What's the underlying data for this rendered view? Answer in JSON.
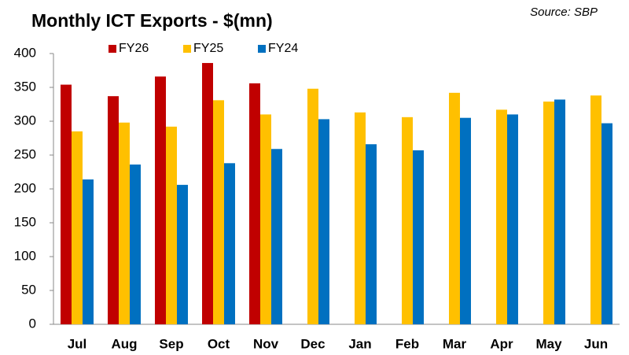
{
  "chart_data": {
    "type": "bar",
    "title": "Monthly ICT Exports - $(mn)",
    "annotation": "Source: SBP",
    "categories": [
      "Jul",
      "Aug",
      "Sep",
      "Oct",
      "Nov",
      "Dec",
      "Jan",
      "Feb",
      "Mar",
      "Apr",
      "May",
      "Jun"
    ],
    "series": [
      {
        "name": "FY26",
        "color": "#c00000",
        "values": [
          354,
          337,
          366,
          386,
          356,
          null,
          null,
          null,
          null,
          null,
          null,
          null
        ]
      },
      {
        "name": "FY25",
        "color": "#ffc000",
        "values": [
          285,
          298,
          292,
          331,
          310,
          348,
          313,
          306,
          342,
          317,
          329,
          338
        ]
      },
      {
        "name": "FY24",
        "color": "#0070c0",
        "values": [
          214,
          236,
          206,
          238,
          259,
          303,
          266,
          257,
          305,
          310,
          332,
          297
        ]
      }
    ],
    "ylim": [
      0,
      400
    ],
    "yticks": [
      0,
      50,
      100,
      150,
      200,
      250,
      300,
      350,
      400
    ],
    "grid": false,
    "legend": "top"
  }
}
